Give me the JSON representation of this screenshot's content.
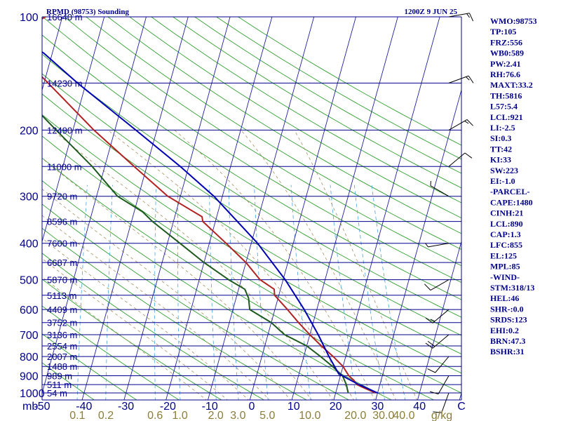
{
  "header": {
    "station": "RPMD (98753) Sounding",
    "time": "1200Z  9 JUN 25"
  },
  "indices": [
    "WMO:98753",
    "TP:105",
    "FRZ:556",
    "WB0:589",
    "PW:2.41",
    "RH:76.6",
    "MAXT:33.2",
    "TH:5816",
    "L57:5.4",
    "LCL:921",
    "LI:-2.5",
    "SI:0.3",
    "TT:42",
    "KI:33",
    "SW:223",
    "EI:-1.0",
    "-PARCEL-",
    "CAPE:1480",
    "CINH:21",
    "LCL:890",
    "CAP:1.3",
    "LFC:855",
    "EL:125",
    "MPL:85",
    "-WIND-",
    "STM:318/13",
    "HEL:46",
    "SHR-:0.0",
    "SRDS:123",
    "EHI:0.2",
    "BRN:47.3",
    "BSHR:31"
  ],
  "chart_data": {
    "type": "line",
    "subtype": "skew-T log-p diagram",
    "y_axis": {
      "scale": "log",
      "unit_label": "mb",
      "range_mb": [
        100,
        1050
      ],
      "pressure_tick_labels": [
        "100",
        "200",
        "300",
        "400",
        "500",
        "600",
        "700",
        "800",
        "900",
        "1000"
      ],
      "pressure_ticks_mb": [
        100,
        200,
        300,
        400,
        500,
        600,
        700,
        800,
        900,
        1000
      ]
    },
    "x_axis": {
      "temperature_tick_labels": [
        "-50",
        "-40",
        "-30",
        "-20",
        "-10",
        "0",
        "10",
        "20",
        "30",
        "40",
        "C"
      ],
      "temperature_ticks_c": [
        -50,
        -40,
        -30,
        -20,
        -10,
        0,
        10,
        20,
        30,
        40
      ],
      "mixing_ratio_labels": [
        "0.1",
        "0.2",
        "0.6",
        "1.0",
        "2.0",
        "3.0",
        "5.0",
        "10.0",
        "20.0",
        "30.0",
        "40.0",
        "g/kg"
      ],
      "mixing_ratio_ticks_gkg": [
        0.1,
        0.2,
        0.6,
        1.0,
        2.0,
        3.0,
        5.0,
        10.0,
        20.0,
        30.0,
        40.0
      ]
    },
    "height_levels": [
      {
        "p": 100,
        "label": "16640 m"
      },
      {
        "p": 150,
        "label": "14230 m"
      },
      {
        "p": 200,
        "label": "12490 m"
      },
      {
        "p": 250,
        "label": "11000 m"
      },
      {
        "p": 300,
        "label": "9720 m"
      },
      {
        "p": 350,
        "label": "8596 m"
      },
      {
        "p": 400,
        "label": "7600 m"
      },
      {
        "p": 450,
        "label": "6687 m"
      },
      {
        "p": 500,
        "label": "5870 m"
      },
      {
        "p": 550,
        "label": "5113 m"
      },
      {
        "p": 600,
        "label": "4409 m"
      },
      {
        "p": 650,
        "label": "3752 m"
      },
      {
        "p": 700,
        "label": "3136 m"
      },
      {
        "p": 750,
        "label": "2554 m"
      },
      {
        "p": 800,
        "label": "2007 m"
      },
      {
        "p": 850,
        "label": "1488 m"
      },
      {
        "p": 900,
        "label": "989 m"
      },
      {
        "p": 950,
        "label": "511 m"
      },
      {
        "p": 1000,
        "label": "54 m"
      }
    ],
    "series": [
      {
        "name": "Temperature",
        "color": "#b22222",
        "points": [
          {
            "p": 1000,
            "t": 29.5
          },
          {
            "p": 970,
            "t": 26.5
          },
          {
            "p": 950,
            "t": 24.5
          },
          {
            "p": 925,
            "t": 23.5
          },
          {
            "p": 900,
            "t": 22.0
          },
          {
            "p": 850,
            "t": 20.0
          },
          {
            "p": 800,
            "t": 17.0
          },
          {
            "p": 750,
            "t": 13.5
          },
          {
            "p": 700,
            "t": 10.0
          },
          {
            "p": 650,
            "t": 6.5
          },
          {
            "p": 600,
            "t": 3.0
          },
          {
            "p": 550,
            "t": -1.0
          },
          {
            "p": 530,
            "t": -1.5
          },
          {
            "p": 500,
            "t": -5.5
          },
          {
            "p": 450,
            "t": -10.0
          },
          {
            "p": 400,
            "t": -16.0
          },
          {
            "p": 350,
            "t": -23.0
          },
          {
            "p": 340,
            "t": -23.5
          },
          {
            "p": 300,
            "t": -33.0
          },
          {
            "p": 250,
            "t": -43.0
          },
          {
            "p": 200,
            "t": -55.0
          },
          {
            "p": 150,
            "t": -69.0
          },
          {
            "p": 125,
            "t": -78.0
          },
          {
            "p": 120,
            "t": -77.5
          },
          {
            "p": 110,
            "t": -76.0
          },
          {
            "p": 105,
            "t": -77.0
          },
          {
            "p": 100,
            "t": -74.0
          }
        ]
      },
      {
        "name": "Dewpoint",
        "color": "#1e5a1e",
        "points": [
          {
            "p": 1000,
            "t": 23.0
          },
          {
            "p": 950,
            "t": 22.0
          },
          {
            "p": 900,
            "t": 20.5
          },
          {
            "p": 850,
            "t": 17.5
          },
          {
            "p": 800,
            "t": 14.0
          },
          {
            "p": 750,
            "t": 10.0
          },
          {
            "p": 700,
            "t": 4.0
          },
          {
            "p": 650,
            "t": 0.0
          },
          {
            "p": 600,
            "t": -6.0
          },
          {
            "p": 560,
            "t": -7.0
          },
          {
            "p": 530,
            "t": -8.5
          },
          {
            "p": 500,
            "t": -13.0
          },
          {
            "p": 450,
            "t": -20.0
          },
          {
            "p": 400,
            "t": -27.0
          },
          {
            "p": 350,
            "t": -35.0
          },
          {
            "p": 330,
            "t": -38.0
          },
          {
            "p": 300,
            "t": -45.0
          },
          {
            "p": 250,
            "t": -53.0
          },
          {
            "p": 200,
            "t": -64.0
          },
          {
            "p": 150,
            "t": -78.0
          },
          {
            "p": 125,
            "t": -88.0
          },
          {
            "p": 110,
            "t": -85.0
          },
          {
            "p": 100,
            "t": -88.0
          }
        ]
      },
      {
        "name": "Parcel",
        "color": "#0000b4",
        "points": [
          {
            "p": 1000,
            "t": 30.0
          },
          {
            "p": 950,
            "t": 25.0
          },
          {
            "p": 890,
            "t": 19.5
          },
          {
            "p": 850,
            "t": 18.0
          },
          {
            "p": 800,
            "t": 16.0
          },
          {
            "p": 700,
            "t": 12.0
          },
          {
            "p": 600,
            "t": 7.0
          },
          {
            "p": 500,
            "t": 0.5
          },
          {
            "p": 400,
            "t": -8.5
          },
          {
            "p": 300,
            "t": -22.0
          },
          {
            "p": 250,
            "t": -32.0
          },
          {
            "p": 200,
            "t": -45.0
          },
          {
            "p": 150,
            "t": -62.0
          },
          {
            "p": 125,
            "t": -72.0
          },
          {
            "p": 100,
            "t": -87.0
          }
        ]
      }
    ],
    "wind_barbs": [
      {
        "p": 100,
        "dir": 80,
        "kt": 15
      },
      {
        "p": 150,
        "dir": 70,
        "kt": 15
      },
      {
        "p": 200,
        "dir": 60,
        "kt": 15
      },
      {
        "p": 250,
        "dir": 50,
        "kt": 10
      },
      {
        "p": 300,
        "dir": 300,
        "kt": 5
      },
      {
        "p": 400,
        "dir": 260,
        "kt": 5
      },
      {
        "p": 500,
        "dir": 240,
        "kt": 10
      },
      {
        "p": 600,
        "dir": 230,
        "kt": 15
      },
      {
        "p": 700,
        "dir": 230,
        "kt": 20
      },
      {
        "p": 800,
        "dir": 220,
        "kt": 10
      },
      {
        "p": 900,
        "dir": 210,
        "kt": 10
      },
      {
        "p": 1000,
        "dir": 200,
        "kt": 10
      }
    ],
    "grid": true
  }
}
